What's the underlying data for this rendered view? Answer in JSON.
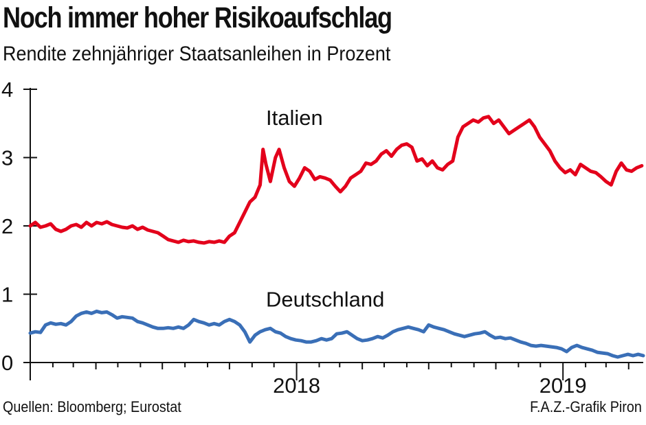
{
  "header": {
    "title": "Noch immer hoher Risikoaufschlag",
    "subtitle": "Rendite zehnjähriger Staatsanleihen in Prozent"
  },
  "footer": {
    "source": "Quellen: Bloomberg; Eurostat",
    "credit": "F.A.Z.-Grafik Piron"
  },
  "colors": {
    "italien": "#e3001b",
    "deutschland": "#3a6fb7",
    "axis": "#111111"
  },
  "chart_data": {
    "type": "line",
    "title": "Noch immer hoher Risikoaufschlag",
    "subtitle": "Rendite zehnjähriger Staatsanleihen in Prozent",
    "ylim": [
      0,
      4
    ],
    "yticks": [
      0,
      1,
      2,
      3,
      4
    ],
    "year_labels": [
      {
        "label": "2018",
        "x": "2018-01-01"
      },
      {
        "label": "2019",
        "x": "2019-01-01"
      }
    ],
    "x_range": [
      "2017-01-01",
      "2019-03-15"
    ],
    "grid": false,
    "series": [
      {
        "name": "Italien",
        "color": "#e3001b",
        "points": [
          [
            "2017-01-01",
            2.0
          ],
          [
            "2017-01-08",
            2.05
          ],
          [
            "2017-01-15",
            1.98
          ],
          [
            "2017-01-22",
            2.0
          ],
          [
            "2017-01-29",
            2.03
          ],
          [
            "2017-02-05",
            1.95
          ],
          [
            "2017-02-12",
            1.92
          ],
          [
            "2017-02-19",
            1.95
          ],
          [
            "2017-02-26",
            2.0
          ],
          [
            "2017-03-05",
            2.02
          ],
          [
            "2017-03-12",
            1.98
          ],
          [
            "2017-03-19",
            2.05
          ],
          [
            "2017-03-26",
            2.0
          ],
          [
            "2017-04-02",
            2.05
          ],
          [
            "2017-04-09",
            2.03
          ],
          [
            "2017-04-16",
            2.06
          ],
          [
            "2017-04-23",
            2.02
          ],
          [
            "2017-04-30",
            2.0
          ],
          [
            "2017-05-07",
            1.98
          ],
          [
            "2017-05-14",
            1.97
          ],
          [
            "2017-05-21",
            2.0
          ],
          [
            "2017-05-28",
            1.95
          ],
          [
            "2017-06-04",
            1.98
          ],
          [
            "2017-06-11",
            1.94
          ],
          [
            "2017-06-18",
            1.92
          ],
          [
            "2017-06-25",
            1.9
          ],
          [
            "2017-07-02",
            1.85
          ],
          [
            "2017-07-09",
            1.8
          ],
          [
            "2017-07-16",
            1.78
          ],
          [
            "2017-07-23",
            1.76
          ],
          [
            "2017-07-30",
            1.79
          ],
          [
            "2017-08-06",
            1.77
          ],
          [
            "2017-08-13",
            1.78
          ],
          [
            "2017-08-20",
            1.76
          ],
          [
            "2017-08-27",
            1.75
          ],
          [
            "2017-09-03",
            1.77
          ],
          [
            "2017-09-10",
            1.76
          ],
          [
            "2017-09-17",
            1.78
          ],
          [
            "2017-09-24",
            1.76
          ],
          [
            "2017-10-01",
            1.85
          ],
          [
            "2017-10-08",
            1.9
          ],
          [
            "2017-10-15",
            2.05
          ],
          [
            "2017-10-22",
            2.2
          ],
          [
            "2017-10-29",
            2.35
          ],
          [
            "2017-11-05",
            2.42
          ],
          [
            "2017-11-12",
            2.6
          ],
          [
            "2017-11-16",
            3.12
          ],
          [
            "2017-11-20",
            2.9
          ],
          [
            "2017-11-26",
            2.65
          ],
          [
            "2017-12-03",
            3.0
          ],
          [
            "2017-12-08",
            3.12
          ],
          [
            "2017-12-15",
            2.85
          ],
          [
            "2017-12-22",
            2.65
          ],
          [
            "2017-12-29",
            2.58
          ],
          [
            "2018-01-05",
            2.7
          ],
          [
            "2018-01-12",
            2.85
          ],
          [
            "2018-01-19",
            2.8
          ],
          [
            "2018-01-26",
            2.68
          ],
          [
            "2018-02-02",
            2.72
          ],
          [
            "2018-02-09",
            2.7
          ],
          [
            "2018-02-16",
            2.67
          ],
          [
            "2018-02-23",
            2.58
          ],
          [
            "2018-03-02",
            2.5
          ],
          [
            "2018-03-09",
            2.58
          ],
          [
            "2018-03-16",
            2.7
          ],
          [
            "2018-03-23",
            2.75
          ],
          [
            "2018-03-30",
            2.8
          ],
          [
            "2018-04-06",
            2.92
          ],
          [
            "2018-04-13",
            2.9
          ],
          [
            "2018-04-20",
            2.95
          ],
          [
            "2018-04-27",
            3.05
          ],
          [
            "2018-05-04",
            3.1
          ],
          [
            "2018-05-11",
            3.02
          ],
          [
            "2018-05-18",
            3.12
          ],
          [
            "2018-05-25",
            3.18
          ],
          [
            "2018-06-01",
            3.2
          ],
          [
            "2018-06-08",
            3.15
          ],
          [
            "2018-06-15",
            2.95
          ],
          [
            "2018-06-22",
            2.98
          ],
          [
            "2018-06-29",
            2.88
          ],
          [
            "2018-07-06",
            2.95
          ],
          [
            "2018-07-13",
            2.85
          ],
          [
            "2018-07-20",
            2.82
          ],
          [
            "2018-07-27",
            2.9
          ],
          [
            "2018-08-03",
            2.95
          ],
          [
            "2018-08-10",
            3.3
          ],
          [
            "2018-08-17",
            3.45
          ],
          [
            "2018-08-24",
            3.5
          ],
          [
            "2018-08-31",
            3.55
          ],
          [
            "2018-09-07",
            3.52
          ],
          [
            "2018-09-14",
            3.58
          ],
          [
            "2018-09-21",
            3.6
          ],
          [
            "2018-09-28",
            3.5
          ],
          [
            "2018-10-05",
            3.55
          ],
          [
            "2018-10-12",
            3.45
          ],
          [
            "2018-10-19",
            3.35
          ],
          [
            "2018-10-26",
            3.4
          ],
          [
            "2018-11-02",
            3.45
          ],
          [
            "2018-11-09",
            3.5
          ],
          [
            "2018-11-16",
            3.55
          ],
          [
            "2018-11-23",
            3.45
          ],
          [
            "2018-11-30",
            3.3
          ],
          [
            "2018-12-07",
            3.2
          ],
          [
            "2018-12-14",
            3.1
          ],
          [
            "2018-12-21",
            2.95
          ],
          [
            "2018-12-28",
            2.85
          ],
          [
            "2019-01-04",
            2.78
          ],
          [
            "2019-01-11",
            2.82
          ],
          [
            "2019-01-18",
            2.75
          ],
          [
            "2019-01-25",
            2.9
          ],
          [
            "2019-02-01",
            2.85
          ],
          [
            "2019-02-08",
            2.8
          ],
          [
            "2019-02-15",
            2.78
          ],
          [
            "2019-02-22",
            2.72
          ],
          [
            "2019-03-01",
            2.65
          ],
          [
            "2019-03-08",
            2.6
          ],
          [
            "2019-03-15",
            2.8
          ],
          [
            "2019-03-22",
            2.92
          ],
          [
            "2019-03-29",
            2.82
          ],
          [
            "2019-04-05",
            2.8
          ],
          [
            "2019-04-12",
            2.85
          ],
          [
            "2019-04-19",
            2.88
          ]
        ]
      },
      {
        "name": "Deutschland",
        "color": "#3a6fb7",
        "points": [
          [
            "2017-01-01",
            0.43
          ],
          [
            "2017-01-08",
            0.45
          ],
          [
            "2017-01-15",
            0.44
          ],
          [
            "2017-01-22",
            0.55
          ],
          [
            "2017-01-29",
            0.58
          ],
          [
            "2017-02-05",
            0.56
          ],
          [
            "2017-02-12",
            0.57
          ],
          [
            "2017-02-19",
            0.55
          ],
          [
            "2017-02-26",
            0.6
          ],
          [
            "2017-03-05",
            0.68
          ],
          [
            "2017-03-12",
            0.72
          ],
          [
            "2017-03-19",
            0.74
          ],
          [
            "2017-03-26",
            0.72
          ],
          [
            "2017-04-02",
            0.75
          ],
          [
            "2017-04-09",
            0.73
          ],
          [
            "2017-04-16",
            0.74
          ],
          [
            "2017-04-23",
            0.7
          ],
          [
            "2017-04-30",
            0.65
          ],
          [
            "2017-05-07",
            0.67
          ],
          [
            "2017-05-14",
            0.66
          ],
          [
            "2017-05-21",
            0.65
          ],
          [
            "2017-05-28",
            0.6
          ],
          [
            "2017-06-04",
            0.58
          ],
          [
            "2017-06-11",
            0.55
          ],
          [
            "2017-06-18",
            0.52
          ],
          [
            "2017-06-25",
            0.5
          ],
          [
            "2017-07-02",
            0.5
          ],
          [
            "2017-07-09",
            0.51
          ],
          [
            "2017-07-16",
            0.5
          ],
          [
            "2017-07-23",
            0.52
          ],
          [
            "2017-07-30",
            0.5
          ],
          [
            "2017-08-06",
            0.55
          ],
          [
            "2017-08-13",
            0.63
          ],
          [
            "2017-08-20",
            0.6
          ],
          [
            "2017-08-27",
            0.58
          ],
          [
            "2017-09-03",
            0.55
          ],
          [
            "2017-09-10",
            0.57
          ],
          [
            "2017-09-17",
            0.55
          ],
          [
            "2017-09-24",
            0.6
          ],
          [
            "2017-10-01",
            0.63
          ],
          [
            "2017-10-08",
            0.6
          ],
          [
            "2017-10-15",
            0.55
          ],
          [
            "2017-10-22",
            0.45
          ],
          [
            "2017-10-29",
            0.3
          ],
          [
            "2017-11-05",
            0.4
          ],
          [
            "2017-11-12",
            0.45
          ],
          [
            "2017-11-19",
            0.48
          ],
          [
            "2017-11-26",
            0.5
          ],
          [
            "2017-12-03",
            0.45
          ],
          [
            "2017-12-10",
            0.43
          ],
          [
            "2017-12-17",
            0.38
          ],
          [
            "2017-12-24",
            0.35
          ],
          [
            "2017-12-31",
            0.33
          ],
          [
            "2018-01-07",
            0.32
          ],
          [
            "2018-01-14",
            0.3
          ],
          [
            "2018-01-21",
            0.3
          ],
          [
            "2018-01-28",
            0.32
          ],
          [
            "2018-02-04",
            0.35
          ],
          [
            "2018-02-11",
            0.33
          ],
          [
            "2018-02-18",
            0.35
          ],
          [
            "2018-02-25",
            0.42
          ],
          [
            "2018-03-04",
            0.43
          ],
          [
            "2018-03-11",
            0.45
          ],
          [
            "2018-03-18",
            0.4
          ],
          [
            "2018-03-25",
            0.35
          ],
          [
            "2018-04-01",
            0.32
          ],
          [
            "2018-04-08",
            0.33
          ],
          [
            "2018-04-15",
            0.35
          ],
          [
            "2018-04-22",
            0.38
          ],
          [
            "2018-04-29",
            0.36
          ],
          [
            "2018-05-06",
            0.4
          ],
          [
            "2018-05-13",
            0.45
          ],
          [
            "2018-05-20",
            0.48
          ],
          [
            "2018-05-27",
            0.5
          ],
          [
            "2018-06-03",
            0.52
          ],
          [
            "2018-06-10",
            0.5
          ],
          [
            "2018-06-17",
            0.48
          ],
          [
            "2018-06-24",
            0.45
          ],
          [
            "2018-07-01",
            0.55
          ],
          [
            "2018-07-08",
            0.52
          ],
          [
            "2018-07-15",
            0.5
          ],
          [
            "2018-07-22",
            0.48
          ],
          [
            "2018-07-29",
            0.45
          ],
          [
            "2018-08-05",
            0.42
          ],
          [
            "2018-08-12",
            0.4
          ],
          [
            "2018-08-19",
            0.38
          ],
          [
            "2018-08-26",
            0.4
          ],
          [
            "2018-09-02",
            0.42
          ],
          [
            "2018-09-09",
            0.43
          ],
          [
            "2018-09-16",
            0.45
          ],
          [
            "2018-09-23",
            0.4
          ],
          [
            "2018-09-30",
            0.36
          ],
          [
            "2018-10-07",
            0.37
          ],
          [
            "2018-10-14",
            0.35
          ],
          [
            "2018-10-21",
            0.36
          ],
          [
            "2018-10-28",
            0.33
          ],
          [
            "2018-11-04",
            0.3
          ],
          [
            "2018-11-11",
            0.28
          ],
          [
            "2018-11-18",
            0.25
          ],
          [
            "2018-11-25",
            0.24
          ],
          [
            "2018-12-02",
            0.25
          ],
          [
            "2018-12-09",
            0.24
          ],
          [
            "2018-12-16",
            0.23
          ],
          [
            "2018-12-23",
            0.22
          ],
          [
            "2018-12-30",
            0.2
          ],
          [
            "2019-01-06",
            0.16
          ],
          [
            "2019-01-13",
            0.22
          ],
          [
            "2019-01-20",
            0.25
          ],
          [
            "2019-01-27",
            0.22
          ],
          [
            "2019-02-03",
            0.2
          ],
          [
            "2019-02-10",
            0.18
          ],
          [
            "2019-02-17",
            0.15
          ],
          [
            "2019-02-24",
            0.14
          ],
          [
            "2019-03-03",
            0.13
          ],
          [
            "2019-03-10",
            0.1
          ],
          [
            "2019-03-17",
            0.08
          ],
          [
            "2019-03-24",
            0.1
          ],
          [
            "2019-03-31",
            0.12
          ],
          [
            "2019-04-07",
            0.1
          ],
          [
            "2019-04-14",
            0.12
          ],
          [
            "2019-04-21",
            0.1
          ]
        ]
      }
    ],
    "series_labels": [
      {
        "series": "Italien",
        "text": "Italien",
        "x": "2017-11-20",
        "y": 3.58
      },
      {
        "series": "Deutschland",
        "text": "Deutschland",
        "x": "2017-11-20",
        "y": 0.92
      }
    ]
  }
}
